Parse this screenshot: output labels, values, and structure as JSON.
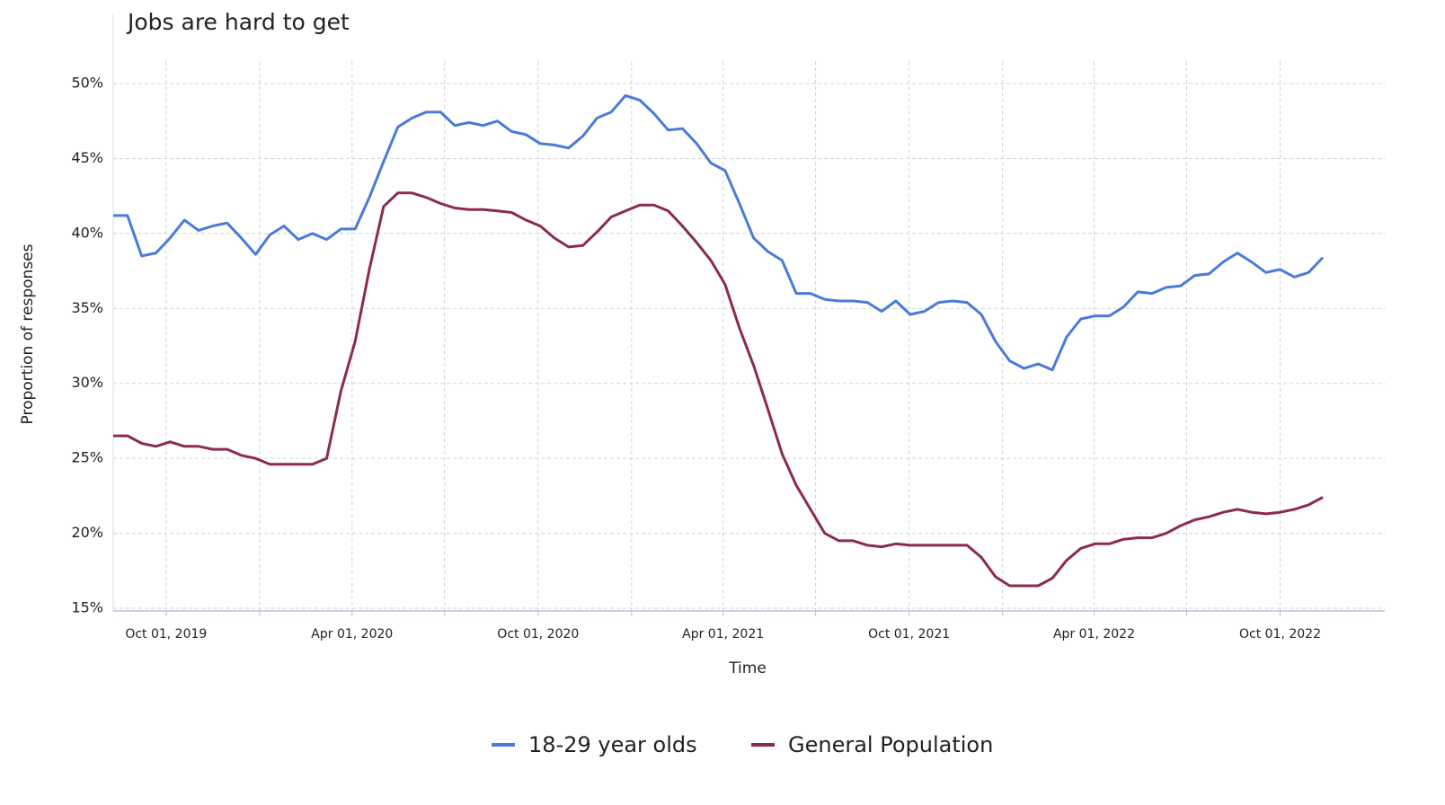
{
  "chart_data": {
    "type": "line",
    "title": "Jobs are hard to get",
    "x_label": "Time",
    "y_label": "Proportion of responses",
    "x": [
      "2019-08-10",
      "2019-08-24",
      "2019-09-07",
      "2019-09-21",
      "2019-10-05",
      "2019-10-19",
      "2019-11-02",
      "2019-11-16",
      "2019-11-30",
      "2019-12-14",
      "2019-12-28",
      "2020-01-11",
      "2020-01-25",
      "2020-02-08",
      "2020-02-22",
      "2020-03-07",
      "2020-03-21",
      "2020-04-04",
      "2020-04-18",
      "2020-05-02",
      "2020-05-16",
      "2020-05-30",
      "2020-06-13",
      "2020-06-27",
      "2020-07-11",
      "2020-07-25",
      "2020-08-08",
      "2020-08-22",
      "2020-09-05",
      "2020-09-19",
      "2020-10-03",
      "2020-10-17",
      "2020-10-31",
      "2020-11-14",
      "2020-11-28",
      "2020-12-12",
      "2020-12-26",
      "2021-01-09",
      "2021-01-23",
      "2021-02-06",
      "2021-02-20",
      "2021-03-06",
      "2021-03-20",
      "2021-04-03",
      "2021-04-17",
      "2021-05-01",
      "2021-05-15",
      "2021-05-29",
      "2021-06-12",
      "2021-06-26",
      "2021-07-10",
      "2021-07-24",
      "2021-08-07",
      "2021-08-21",
      "2021-09-04",
      "2021-09-18",
      "2021-10-02",
      "2021-10-16",
      "2021-10-30",
      "2021-11-13",
      "2021-11-27",
      "2021-12-11",
      "2021-12-25",
      "2022-01-08",
      "2022-01-22",
      "2022-02-05",
      "2022-02-19",
      "2022-03-05",
      "2022-03-19",
      "2022-04-02",
      "2022-04-16",
      "2022-04-30",
      "2022-05-14",
      "2022-05-28",
      "2022-06-11",
      "2022-06-25",
      "2022-07-09",
      "2022-07-23",
      "2022-08-06",
      "2022-08-20",
      "2022-09-03",
      "2022-09-17",
      "2022-10-01",
      "2022-10-15",
      "2022-10-29",
      "2022-11-12"
    ],
    "series": [
      {
        "name": "18-29 year olds",
        "color": "#4a7bd8",
        "values": [
          41.2,
          41.2,
          38.5,
          38.7,
          39.7,
          40.9,
          40.2,
          40.5,
          40.7,
          39.7,
          38.6,
          39.9,
          40.5,
          39.6,
          40.0,
          39.6,
          40.3,
          40.3,
          42.4,
          44.8,
          47.1,
          47.7,
          48.1,
          48.1,
          47.2,
          47.4,
          47.2,
          47.5,
          46.8,
          46.6,
          46.0,
          45.9,
          45.7,
          46.5,
          47.7,
          48.1,
          49.2,
          48.9,
          48.0,
          46.9,
          47.0,
          46.0,
          44.7,
          44.2,
          42.0,
          39.7,
          38.8,
          38.2,
          36.0,
          36.0,
          35.6,
          35.5,
          35.5,
          35.4,
          34.8,
          35.5,
          34.6,
          34.8,
          35.4,
          35.5,
          35.4,
          34.6,
          32.8,
          31.5,
          31.0,
          31.3,
          30.9,
          33.1,
          34.3,
          34.5,
          34.5,
          35.1,
          36.1,
          36.0,
          36.4,
          36.5,
          37.2,
          37.3,
          38.1,
          38.7,
          38.1,
          37.4,
          37.6,
          37.1,
          37.4,
          38.4
        ]
      },
      {
        "name": "General Population",
        "color": "#8b2a52",
        "values": [
          26.5,
          26.5,
          26.0,
          25.8,
          26.1,
          25.8,
          25.8,
          25.6,
          25.6,
          25.2,
          25.0,
          24.6,
          24.6,
          24.6,
          24.6,
          25.0,
          29.5,
          32.8,
          37.6,
          41.8,
          42.7,
          42.7,
          42.4,
          42.0,
          41.7,
          41.6,
          41.6,
          41.5,
          41.4,
          40.9,
          40.5,
          39.7,
          39.1,
          39.2,
          40.1,
          41.1,
          41.5,
          41.9,
          41.9,
          41.5,
          40.5,
          39.4,
          38.2,
          36.6,
          33.7,
          31.2,
          28.3,
          25.3,
          23.2,
          21.6,
          20.0,
          19.5,
          19.5,
          19.2,
          19.1,
          19.3,
          19.2,
          19.2,
          19.2,
          19.2,
          19.2,
          18.4,
          17.1,
          16.5,
          16.5,
          16.5,
          17.0,
          18.2,
          19.0,
          19.3,
          19.3,
          19.6,
          19.7,
          19.7,
          20.0,
          20.5,
          20.9,
          21.1,
          21.4,
          21.6,
          21.4,
          21.3,
          21.4,
          21.6,
          21.9,
          22.4
        ]
      }
    ],
    "xlim": [
      "2019-08-10",
      "2023-01-12"
    ],
    "xticks": [
      {
        "value": "2019-10-01",
        "label": "Oct 01, 2019"
      },
      {
        "value": "2020-01-01",
        "label": null
      },
      {
        "value": "2020-04-01",
        "label": "Apr 01, 2020"
      },
      {
        "value": "2020-07-01",
        "label": null
      },
      {
        "value": "2020-10-01",
        "label": "Oct 01, 2020"
      },
      {
        "value": "2021-01-01",
        "label": null
      },
      {
        "value": "2021-04-01",
        "label": "Apr 01, 2021"
      },
      {
        "value": "2021-07-01",
        "label": null
      },
      {
        "value": "2021-10-01",
        "label": "Oct 01, 2021"
      },
      {
        "value": "2022-01-01",
        "label": null
      },
      {
        "value": "2022-04-01",
        "label": "Apr 01, 2022"
      },
      {
        "value": "2022-07-01",
        "label": null
      },
      {
        "value": "2022-10-01",
        "label": "Oct 01, 2022"
      }
    ],
    "ylim": [
      15,
      51.5
    ],
    "yticks": [
      {
        "value": 15,
        "label": "15%"
      },
      {
        "value": 20,
        "label": "20%"
      },
      {
        "value": 25,
        "label": "25%"
      },
      {
        "value": 30,
        "label": "30%"
      },
      {
        "value": 35,
        "label": "35%"
      },
      {
        "value": 40,
        "label": "40%"
      },
      {
        "value": 45,
        "label": "45%"
      },
      {
        "value": 50,
        "label": "50%"
      }
    ],
    "grid": true,
    "legend": "bottom"
  }
}
